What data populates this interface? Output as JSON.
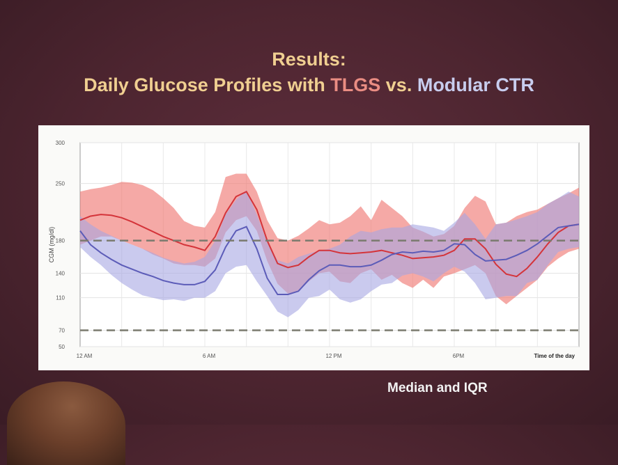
{
  "slide": {
    "title_line1": "Results:",
    "title_prefix": "Daily Glucose Profiles with ",
    "title_tlgs": "TLGS",
    "title_vs": " vs. ",
    "title_ctr": "Modular CTR",
    "caption": "Median and IQR",
    "colors": {
      "background": "#4d2530",
      "title": "#f0cf91",
      "tlgs": "#ea8d83",
      "ctr": "#c8cdee",
      "caption": "#f2f2f2"
    }
  },
  "chart_data": {
    "type": "area",
    "xlabel": "Time of the day",
    "ylabel": "CGM (mg/dl)",
    "xlim": [
      0,
      24
    ],
    "ylim": [
      50,
      300
    ],
    "y_ticks": [
      50,
      70,
      110,
      140,
      180,
      250,
      300
    ],
    "x_tick_values": [
      0,
      6,
      12,
      18
    ],
    "x_tick_labels": [
      "12 AM",
      "6 AM",
      "12 PM",
      "6PM"
    ],
    "reference_lines": [
      180,
      70
    ],
    "grid": true,
    "series": [
      {
        "color": "#d4343a",
        "band_color": "#ee6f6a",
        "x": [
          0,
          0.5,
          1,
          1.5,
          2,
          2.5,
          3,
          3.5,
          4,
          4.5,
          5,
          5.5,
          6,
          6.5,
          7,
          7.5,
          8,
          8.5,
          9,
          9.5,
          10,
          10.5,
          11,
          11.5,
          12,
          12.5,
          13,
          13.5,
          14,
          14.5,
          15,
          15.5,
          16,
          16.5,
          17,
          17.5,
          18,
          18.5,
          19,
          19.5,
          20,
          20.5,
          21,
          21.5,
          22,
          22.5,
          23,
          23.5,
          24
        ],
        "median": [
          205,
          210,
          212,
          211,
          208,
          203,
          197,
          191,
          185,
          180,
          175,
          172,
          168,
          185,
          214,
          234,
          240,
          218,
          180,
          152,
          147,
          150,
          160,
          168,
          168,
          165,
          164,
          165,
          166,
          168,
          165,
          162,
          158,
          159,
          160,
          162,
          168,
          182,
          182,
          170,
          151,
          139,
          136,
          146,
          160,
          176,
          190,
          198,
          200
        ],
        "q1": [
          175,
          180,
          185,
          185,
          180,
          175,
          170,
          163,
          158,
          152,
          150,
          150,
          148,
          158,
          190,
          205,
          210,
          192,
          155,
          127,
          115,
          118,
          130,
          140,
          142,
          130,
          128,
          140,
          145,
          132,
          138,
          128,
          122,
          132,
          122,
          136,
          140,
          145,
          150,
          140,
          112,
          102,
          112,
          122,
          132,
          148,
          158,
          166,
          170
        ],
        "q3": [
          240,
          243,
          245,
          248,
          252,
          251,
          248,
          242,
          232,
          220,
          204,
          198,
          196,
          215,
          258,
          262,
          262,
          240,
          205,
          183,
          180,
          186,
          195,
          205,
          200,
          202,
          210,
          222,
          205,
          230,
          220,
          210,
          196,
          191,
          185,
          188,
          198,
          220,
          235,
          228,
          200,
          202,
          210,
          215,
          218,
          225,
          232,
          238,
          245
        ]
      },
      {
        "color": "#5c5cb8",
        "band_color": "#a6a6e2",
        "x": [
          0,
          0.5,
          1,
          1.5,
          2,
          2.5,
          3,
          3.5,
          4,
          4.5,
          5,
          5.5,
          6,
          6.5,
          7,
          7.5,
          8,
          8.5,
          9,
          9.5,
          10,
          10.5,
          11,
          11.5,
          12,
          12.5,
          13,
          13.5,
          14,
          14.5,
          15,
          15.5,
          16,
          16.5,
          17,
          17.5,
          18,
          18.5,
          19,
          19.5,
          20,
          20.5,
          21,
          21.5,
          22,
          22.5,
          23,
          23.5,
          24
        ],
        "median": [
          192,
          175,
          165,
          157,
          150,
          145,
          140,
          136,
          131,
          128,
          126,
          126,
          130,
          144,
          172,
          192,
          197,
          170,
          134,
          114,
          114,
          118,
          132,
          143,
          150,
          150,
          148,
          148,
          150,
          156,
          163,
          166,
          165,
          167,
          166,
          168,
          176,
          175,
          163,
          155,
          156,
          157,
          162,
          168,
          176,
          186,
          196,
          198,
          200
        ],
        "q1": [
          172,
          160,
          150,
          138,
          128,
          120,
          113,
          110,
          107,
          108,
          106,
          110,
          110,
          118,
          140,
          148,
          150,
          130,
          112,
          93,
          86,
          95,
          110,
          112,
          120,
          108,
          104,
          108,
          118,
          126,
          128,
          137,
          140,
          136,
          130,
          140,
          148,
          142,
          128,
          108,
          110,
          112,
          112,
          128,
          132,
          150,
          166,
          170,
          172
        ],
        "q3": [
          210,
          200,
          192,
          186,
          180,
          175,
          170,
          165,
          159,
          155,
          152,
          154,
          160,
          180,
          212,
          230,
          242,
          212,
          178,
          156,
          152,
          160,
          164,
          168,
          170,
          175,
          185,
          192,
          190,
          194,
          196,
          196,
          200,
          198,
          196,
          192,
          202,
          214,
          200,
          182,
          200,
          202,
          206,
          210,
          215,
          225,
          232,
          240,
          234
        ]
      }
    ]
  }
}
